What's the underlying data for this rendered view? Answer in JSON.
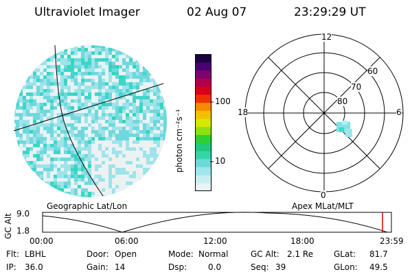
{
  "header": {
    "instrument": "Ultraviolet Imager",
    "date": "02 Aug 07",
    "time": "23:29:29 UT"
  },
  "globe": {
    "label": "Geographic Lat/Lon",
    "data_colors": [
      "#e6f4f6",
      "#c5ebef",
      "#9fe3ea",
      "#6fd8dd",
      "#3dd6c8",
      "#2ed8b6",
      "#f0f0f0"
    ]
  },
  "colorbar": {
    "unit_label": "photon cm⁻²s⁻¹",
    "ticks": [
      {
        "label": "100",
        "value": 100
      },
      {
        "label": "10",
        "value": 10
      }
    ],
    "colors": [
      "#e8f4f6",
      "#c8eef1",
      "#9fe6ec",
      "#6ddad8",
      "#33d6a8",
      "#1fc87a",
      "#2dd030",
      "#8fe010",
      "#d8e800",
      "#f5c000",
      "#f58a00",
      "#f03000",
      "#d8001a",
      "#b0004a",
      "#800070",
      "#4a0070",
      "#1a0040"
    ]
  },
  "polar": {
    "label": "Apex MLat/MLT",
    "mlt_labels": {
      "top": "12",
      "right": "6",
      "bottom": "0",
      "left": "18"
    },
    "lat_labels": [
      "60",
      "70",
      "80"
    ]
  },
  "timeline": {
    "ylabel": "GC Alt",
    "yticks": [
      "9.0",
      "1.8"
    ],
    "xticks": [
      "00:00",
      "06:00",
      "12:00",
      "18:00",
      "23:59"
    ],
    "marker_color": "#d00000"
  },
  "info": {
    "flt_label": "Flt:",
    "flt_value": "LBHL",
    "ip_label": "IP:",
    "ip_value": "36.0",
    "door_label": "Door:",
    "door_value": "Open",
    "gain_label": "Gain:",
    "gain_value": "14",
    "mode_label": "Mode:",
    "mode_value": "Normal",
    "dsp_label": "Dsp:",
    "dsp_value": "0.0",
    "gcalt_label": "GC Alt:",
    "gcalt_value": "2.1 Re",
    "seq_label": "Seq:",
    "seq_value": "39",
    "glat_label": "GLat:",
    "glat_value": "81.7",
    "glon_label": "GLon:",
    "glon_value": "49.5"
  }
}
